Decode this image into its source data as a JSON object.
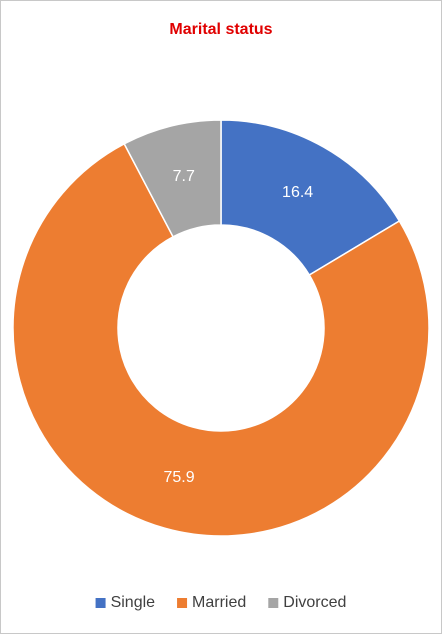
{
  "chart_data": {
    "type": "donut",
    "title": "Marital status",
    "categories": [
      "Single",
      "Married",
      "Divorced"
    ],
    "values": [
      16.4,
      75.9,
      7.7
    ],
    "colors": [
      "#4472c4",
      "#ed7d31",
      "#a5a5a5"
    ],
    "title_color": "#e00000",
    "legend": "bottom"
  }
}
